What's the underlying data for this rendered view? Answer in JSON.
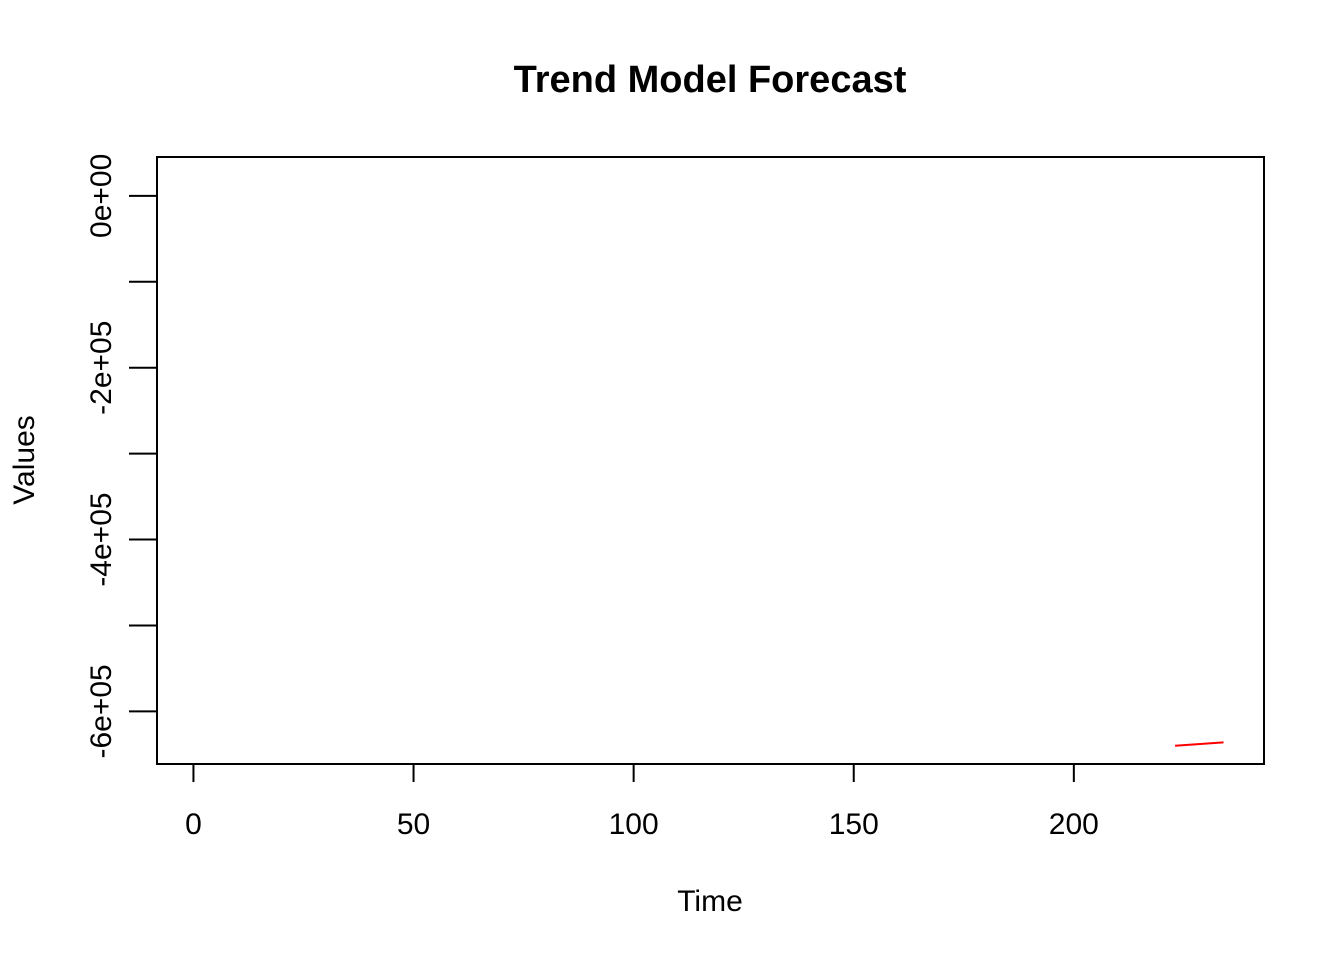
{
  "chart_data": {
    "type": "line",
    "title": "Trend Model Forecast",
    "xlabel": "Time",
    "ylabel": "Values",
    "xlim": [
      -8.28,
      243.2
    ],
    "ylim": [
      -661200,
      45200
    ],
    "x_ticks": [
      0,
      50,
      100,
      150,
      200
    ],
    "x_tick_labels": [
      "0",
      "50",
      "100",
      "150",
      "200"
    ],
    "y_ticks": [
      0,
      -100000,
      -200000,
      -300000,
      -400000,
      -500000,
      -600000
    ],
    "y_tick_labels": [
      "0e+00",
      "",
      "-2e+05",
      "",
      "-4e+05",
      "",
      "-6e+05"
    ],
    "grid": false,
    "legend": "none",
    "series": [
      {
        "color": "#ff0000",
        "x": [
          223,
          234
        ],
        "values": [
          -640000,
          -636000
        ]
      }
    ]
  }
}
